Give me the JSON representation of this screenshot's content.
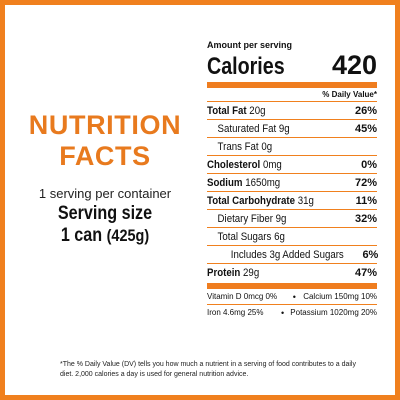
{
  "left": {
    "title_line1": "NUTRITION",
    "title_line2": "FACTS",
    "servings_per_container": "1 serving per container",
    "serving_size_label": "Serving size",
    "serving_size_value": "1 can",
    "serving_size_weight": "(425g)"
  },
  "label": {
    "amount_per_serving": "Amount per serving",
    "calories_label": "Calories",
    "calories_value": "420",
    "daily_value_header": "% Daily Value*",
    "rows": [
      {
        "name": "Total Fat",
        "amount": "20g",
        "pct": "26%",
        "bold": true,
        "indent": 0
      },
      {
        "name": "Saturated Fat",
        "amount": "9g",
        "pct": "45%",
        "bold": false,
        "indent": 1
      },
      {
        "name": "Trans Fat",
        "amount": "0g",
        "pct": "",
        "bold": false,
        "indent": 1
      },
      {
        "name": "Cholesterol",
        "amount": "0mg",
        "pct": "0%",
        "bold": true,
        "indent": 0
      },
      {
        "name": "Sodium",
        "amount": "1650mg",
        "pct": "72%",
        "bold": true,
        "indent": 0
      },
      {
        "name": "Total Carbohydrate",
        "amount": "31g",
        "pct": "11%",
        "bold": true,
        "indent": 0
      },
      {
        "name": "Dietary Fiber",
        "amount": "9g",
        "pct": "32%",
        "bold": false,
        "indent": 1
      },
      {
        "name": "Total Sugars",
        "amount": "6g",
        "pct": "",
        "bold": false,
        "indent": 1
      },
      {
        "name": "Includes 3g Added Sugars",
        "amount": "",
        "pct": "6%",
        "bold": false,
        "indent": 3
      },
      {
        "name": "Protein",
        "amount": "29g",
        "pct": "47%",
        "bold": true,
        "indent": 0
      }
    ],
    "vitamins": [
      {
        "a": "Vitamin D 0mcg 0%",
        "b": "Calcium 150mg 10%"
      },
      {
        "a": "Iron 4.6mg 25%",
        "b": "Potassium 1020mg 20%"
      }
    ],
    "accent_color": "#ef7d1f"
  },
  "footnote": "*The % Daily Value (DV) tells you how much a nutrient in a serving of food contributes to a daily diet. 2,000 calories a day is used for general nutrition advice."
}
